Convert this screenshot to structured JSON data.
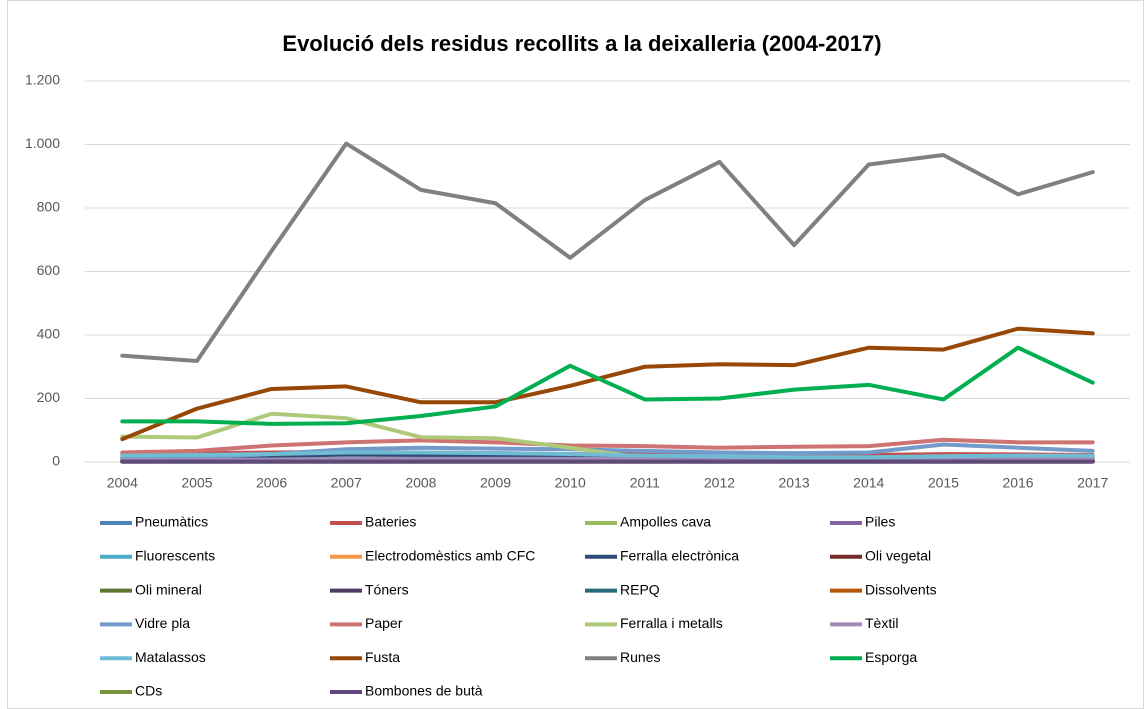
{
  "chart_data": {
    "type": "line",
    "title": "Evolució dels residus recollits a la deixalleria (2004-2017)",
    "categories": [
      "2004",
      "2005",
      "2006",
      "2007",
      "2008",
      "2009",
      "2010",
      "2011",
      "2012",
      "2013",
      "2014",
      "2015",
      "2016",
      "2017"
    ],
    "ylim": [
      0,
      1200
    ],
    "yticks": [
      0,
      200,
      400,
      600,
      800,
      {
        "value": 1000,
        "label": "1.000"
      },
      {
        "value": 1200,
        "label": "1.200"
      }
    ],
    "grid": true,
    "legend": "bottom",
    "series": [
      {
        "name": "Pneumàtics",
        "color": "#4F81BD",
        "values": [
          15,
          18,
          20,
          22,
          20,
          20,
          18,
          15,
          15,
          14,
          14,
          15,
          15,
          15
        ]
      },
      {
        "name": "Bateries",
        "color": "#C0504D",
        "values": [
          25,
          28,
          30,
          32,
          30,
          28,
          25,
          24,
          22,
          22,
          22,
          25,
          24,
          22
        ]
      },
      {
        "name": "Ampolles cava",
        "color": "#9BBB59",
        "values": [
          5,
          5,
          6,
          6,
          6,
          5,
          5,
          5,
          5,
          5,
          5,
          5,
          5,
          5
        ]
      },
      {
        "name": "Piles",
        "color": "#8064A2",
        "values": [
          2,
          2,
          2,
          2,
          2,
          2,
          2,
          2,
          2,
          2,
          2,
          2,
          2,
          2
        ]
      },
      {
        "name": "Fluorescents",
        "color": "#4BACC6",
        "values": [
          3,
          3,
          3,
          3,
          3,
          3,
          3,
          3,
          3,
          3,
          3,
          3,
          3,
          3
        ]
      },
      {
        "name": "Electrodomèstics amb CFC",
        "color": "#F79646",
        "values": [
          8,
          8,
          10,
          10,
          10,
          10,
          10,
          10,
          10,
          10,
          10,
          12,
          12,
          12
        ]
      },
      {
        "name": "Ferralla electrònica",
        "color": "#2C4D75",
        "values": [
          10,
          12,
          15,
          25,
          22,
          20,
          18,
          15,
          12,
          12,
          12,
          10,
          10,
          10
        ]
      },
      {
        "name": "Oli vegetal",
        "color": "#772C2A",
        "values": [
          2,
          2,
          2,
          3,
          3,
          3,
          3,
          3,
          3,
          3,
          3,
          3,
          3,
          3
        ]
      },
      {
        "name": "Oli mineral",
        "color": "#5F7530",
        "values": [
          3,
          3,
          3,
          3,
          3,
          3,
          3,
          3,
          3,
          3,
          3,
          3,
          3,
          3
        ]
      },
      {
        "name": "Tóners",
        "color": "#4D3B62",
        "values": [
          1,
          1,
          1,
          1,
          1,
          1,
          1,
          1,
          1,
          1,
          1,
          1,
          1,
          1
        ]
      },
      {
        "name": "REPQ",
        "color": "#276A7C",
        "values": [
          4,
          4,
          4,
          5,
          5,
          5,
          5,
          5,
          5,
          5,
          5,
          5,
          5,
          5
        ]
      },
      {
        "name": "Dissolvents",
        "color": "#B65708",
        "values": [
          2,
          2,
          2,
          2,
          2,
          2,
          2,
          2,
          2,
          2,
          2,
          2,
          2,
          2
        ]
      },
      {
        "name": "Vidre pla",
        "color": "#729ACA",
        "values": [
          10,
          15,
          25,
          40,
          45,
          42,
          40,
          35,
          30,
          28,
          30,
          55,
          45,
          35
        ]
      },
      {
        "name": "Paper",
        "color": "#CD7371",
        "values": [
          30,
          35,
          52,
          62,
          68,
          62,
          52,
          50,
          45,
          48,
          50,
          70,
          62,
          62
        ]
      },
      {
        "name": "Ferralla i metalls",
        "color": "#AFC97A",
        "values": [
          80,
          77,
          152,
          138,
          78,
          75,
          45,
          12,
          10,
          8,
          8,
          8,
          8,
          8
        ]
      },
      {
        "name": "Tèxtil",
        "color": "#A08AB8",
        "values": [
          6,
          6,
          8,
          10,
          10,
          10,
          10,
          10,
          10,
          10,
          10,
          10,
          10,
          10
        ]
      },
      {
        "name": "Matalassos",
        "color": "#6FBCD4",
        "values": [
          20,
          22,
          25,
          30,
          30,
          28,
          25,
          20,
          18,
          15,
          15,
          18,
          20,
          20
        ]
      },
      {
        "name": "Fusta",
        "color": "#974706",
        "values": [
          72,
          168,
          230,
          238,
          188,
          188,
          240,
          300,
          308,
          305,
          360,
          354,
          420,
          405
        ]
      },
      {
        "name": "Runes",
        "color": "#808080",
        "values": [
          335,
          318,
          665,
          1003,
          857,
          815,
          643,
          825,
          945,
          683,
          937,
          967,
          843,
          913
        ]
      },
      {
        "name": "Esporga",
        "color": "#00B050",
        "values": [
          128,
          128,
          120,
          122,
          145,
          175,
          303,
          197,
          200,
          228,
          243,
          197,
          360,
          250
        ]
      },
      {
        "name": "CDs",
        "color": "#77933C",
        "values": [
          1,
          1,
          1,
          1,
          1,
          1,
          1,
          1,
          1,
          1,
          1,
          1,
          1,
          1
        ]
      },
      {
        "name": "Bombones de butà",
        "color": "#604A7B",
        "values": [
          1,
          1,
          1,
          1,
          1,
          1,
          1,
          1,
          1,
          1,
          1,
          1,
          1,
          1
        ]
      }
    ]
  }
}
